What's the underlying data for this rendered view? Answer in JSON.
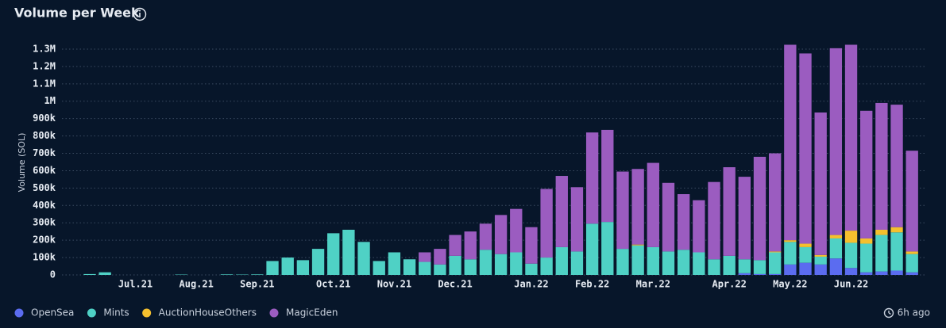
{
  "chart_data": {
    "type": "stacked-bar",
    "title": "Volume per Week",
    "y_label": "Volume (SOL)",
    "updated": "6h ago",
    "legend": "bottom-left",
    "grid": true,
    "categories": [
      null,
      null,
      null,
      "Jul.21",
      null,
      null,
      null,
      "Aug.21",
      null,
      null,
      null,
      "Sep.21",
      null,
      null,
      null,
      null,
      "Oct.21",
      null,
      null,
      null,
      "Nov.21",
      null,
      null,
      null,
      "Dec.21",
      null,
      null,
      null,
      null,
      "Jan.22",
      null,
      null,
      null,
      "Feb.22",
      null,
      null,
      null,
      "Mar.22",
      null,
      null,
      null,
      null,
      "Apr.22",
      null,
      null,
      null,
      "May.22",
      null,
      null,
      null,
      "Jun.22",
      null,
      null,
      null,
      null
    ],
    "series": [
      {
        "name": "OpenSea",
        "color": "#5b6cf0",
        "values": [
          0,
          0,
          0,
          0,
          0,
          0,
          0,
          0,
          0,
          0,
          0,
          0,
          0,
          0,
          0,
          0,
          0,
          0,
          0,
          0,
          0,
          0,
          0,
          0,
          0,
          0,
          0,
          0,
          0,
          0,
          0,
          0,
          0,
          0,
          0,
          0,
          0,
          0,
          0,
          0,
          0,
          0,
          0,
          10000,
          5000,
          5000,
          60000,
          70000,
          60000,
          95000,
          40000,
          15000,
          20000,
          25000,
          15000
        ]
      },
      {
        "name": "Mints",
        "color": "#4fd1c5",
        "values": [
          5000,
          15000,
          0,
          0,
          0,
          0,
          2000,
          0,
          0,
          3000,
          2000,
          3000,
          80000,
          100000,
          85000,
          150000,
          240000,
          260000,
          190000,
          80000,
          130000,
          90000,
          75000,
          60000,
          110000,
          90000,
          145000,
          120000,
          130000,
          65000,
          100000,
          160000,
          135000,
          295000,
          305000,
          150000,
          170000,
          160000,
          135000,
          145000,
          130000,
          90000,
          110000,
          80000,
          80000,
          125000,
          130000,
          90000,
          45000,
          115000,
          145000,
          165000,
          210000,
          220000,
          105000
        ]
      },
      {
        "name": "AuctionHouseOthers",
        "color": "#f5c02e",
        "values": [
          0,
          0,
          0,
          0,
          0,
          0,
          0,
          0,
          0,
          0,
          0,
          0,
          0,
          0,
          0,
          0,
          0,
          0,
          0,
          0,
          0,
          0,
          0,
          0,
          0,
          0,
          0,
          0,
          0,
          0,
          0,
          0,
          0,
          0,
          0,
          0,
          5000,
          0,
          0,
          0,
          0,
          0,
          0,
          0,
          0,
          5000,
          10000,
          20000,
          10000,
          20000,
          70000,
          30000,
          30000,
          30000,
          15000
        ]
      },
      {
        "name": "MagicEden",
        "color": "#9b5cc0",
        "values": [
          0,
          0,
          0,
          0,
          0,
          0,
          0,
          0,
          0,
          0,
          0,
          0,
          0,
          0,
          0,
          0,
          0,
          0,
          0,
          0,
          0,
          0,
          55000,
          90000,
          120000,
          160000,
          150000,
          225000,
          250000,
          210000,
          395000,
          410000,
          370000,
          525000,
          530000,
          445000,
          435000,
          485000,
          395000,
          320000,
          300000,
          445000,
          510000,
          475000,
          595000,
          565000,
          1125000,
          1095000,
          820000,
          1075000,
          1070000,
          735000,
          730000,
          705000,
          580000
        ]
      }
    ],
    "ylim": [
      0,
      1350000
    ],
    "yticks": [
      0,
      {
        "value": 100000,
        "label": "100k"
      },
      {
        "value": 200000,
        "label": "200k"
      },
      {
        "value": 300000,
        "label": "300k"
      },
      {
        "value": 400000,
        "label": "400k"
      },
      {
        "value": 500000,
        "label": "500k"
      },
      {
        "value": 600000,
        "label": "600k"
      },
      {
        "value": 700000,
        "label": "700k"
      },
      {
        "value": 800000,
        "label": "800k"
      },
      {
        "value": 900000,
        "label": "900k"
      },
      {
        "value": 1000000,
        "label": "1M"
      },
      {
        "value": 1100000,
        "label": "1.1M"
      },
      {
        "value": 1200000,
        "label": "1.2M"
      },
      {
        "value": 1300000,
        "label": "1.3M"
      }
    ]
  }
}
